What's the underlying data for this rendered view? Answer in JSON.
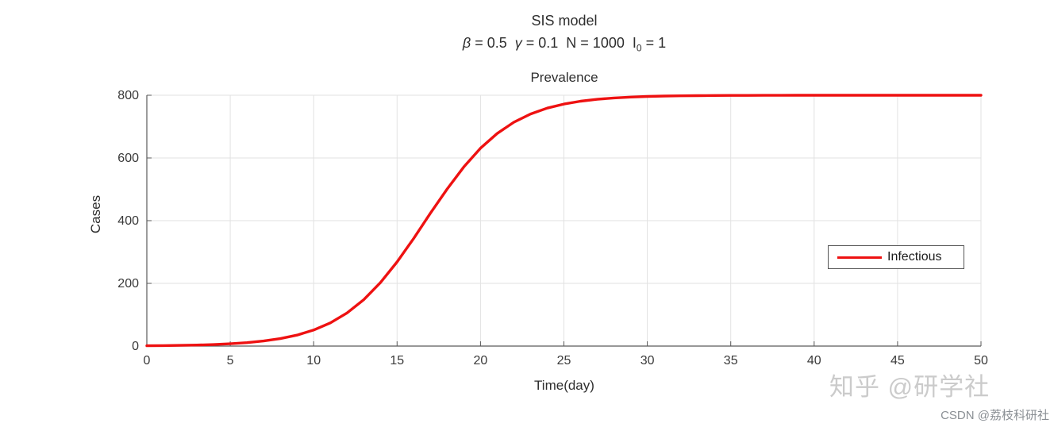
{
  "figure_title": {
    "line1": "SIS model",
    "subtitle": {
      "beta": "β",
      "beta_eq": " = 0.5  ",
      "gamma": "γ",
      "gamma_eq": " = 0.1  ",
      "n_eq": "N = 1000  ",
      "i_sym": "I",
      "i_sub": "0",
      "i_eq": " = 1"
    },
    "line3": "Prevalence"
  },
  "chart_data": {
    "type": "line",
    "title": "SIS model",
    "subtitle": "β = 0.5  γ = 0.1  N = 1000  I0 = 1",
    "axes_title": "Prevalence",
    "xlabel": "Time(day)",
    "ylabel": "Cases",
    "xlim": [
      0,
      50
    ],
    "ylim": [
      0,
      800
    ],
    "xticks": [
      0,
      5,
      10,
      15,
      20,
      25,
      30,
      35,
      40,
      45,
      50
    ],
    "yticks": [
      0,
      200,
      400,
      600,
      800
    ],
    "grid": true,
    "legend_position": "right-middle",
    "params": {
      "beta": 0.5,
      "gamma": 0.1,
      "N": 1000,
      "I0": 1
    },
    "series": [
      {
        "name": "Infectious",
        "color": "#ee1111",
        "x": [
          0,
          1,
          2,
          3,
          4,
          5,
          6,
          7,
          8,
          9,
          10,
          11,
          12,
          13,
          14,
          15,
          16,
          17,
          18,
          19,
          20,
          21,
          22,
          23,
          24,
          25,
          26,
          27,
          28,
          29,
          30,
          31,
          32,
          33,
          34,
          35,
          36,
          37,
          38,
          39,
          40,
          41,
          42,
          43,
          44,
          45,
          46,
          47,
          48,
          49,
          50
        ],
        "values": [
          1,
          1.5,
          2.2,
          3.3,
          4.9,
          7.3,
          10.9,
          16.1,
          23.8,
          35,
          51.2,
          74,
          105.6,
          147.9,
          202.3,
          268.4,
          343.6,
          423.8,
          501,
          571.5,
          631.1,
          678.1,
          714,
          740.3,
          758.9,
          772,
          781.1,
          787.2,
          791.4,
          794.2,
          796.1,
          797.4,
          798.2,
          798.8,
          799.2,
          799.5,
          799.6,
          799.8,
          799.8,
          799.9,
          799.9,
          799.9,
          800,
          800,
          800,
          800,
          800,
          800,
          800,
          800,
          800
        ]
      }
    ]
  },
  "legend": {
    "label": "Infectious",
    "line_color": "#ee1111"
  },
  "watermarks": {
    "zhihu": "知乎 @研学社",
    "csdn": "CSDN @荔枝科研社"
  }
}
